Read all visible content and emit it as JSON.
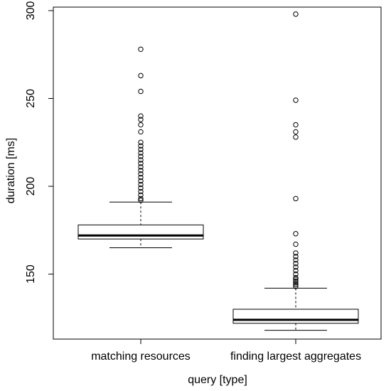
{
  "chart_data": {
    "type": "boxplot",
    "title": "",
    "xlabel": "query [type]",
    "ylabel": "duration [ms]",
    "ylim": [
      113,
      302
    ],
    "yticks": [
      150,
      200,
      250,
      300
    ],
    "grid": false,
    "legend": "none",
    "colors": {
      "stroke": "#000000",
      "background": "#ffffff"
    },
    "series": [
      {
        "category": "matching resources",
        "whisker_low": 165,
        "q1": 170,
        "median": 172,
        "q3": 178,
        "whisker_high": 191,
        "outliers": [
          278,
          263,
          254,
          240,
          238,
          235,
          231,
          225,
          223,
          221,
          219,
          217,
          215,
          213,
          211,
          209,
          207,
          205,
          203,
          201,
          199,
          197,
          195,
          193,
          192
        ]
      },
      {
        "category": "finding largest aggregates",
        "whisker_low": 118,
        "q1": 122,
        "median": 124,
        "q3": 130,
        "whisker_high": 142,
        "outliers": [
          298,
          249,
          235,
          231,
          228,
          193,
          173,
          167,
          162,
          160,
          158,
          156,
          154,
          152,
          150,
          148,
          147,
          146,
          145,
          144,
          143
        ]
      }
    ]
  }
}
